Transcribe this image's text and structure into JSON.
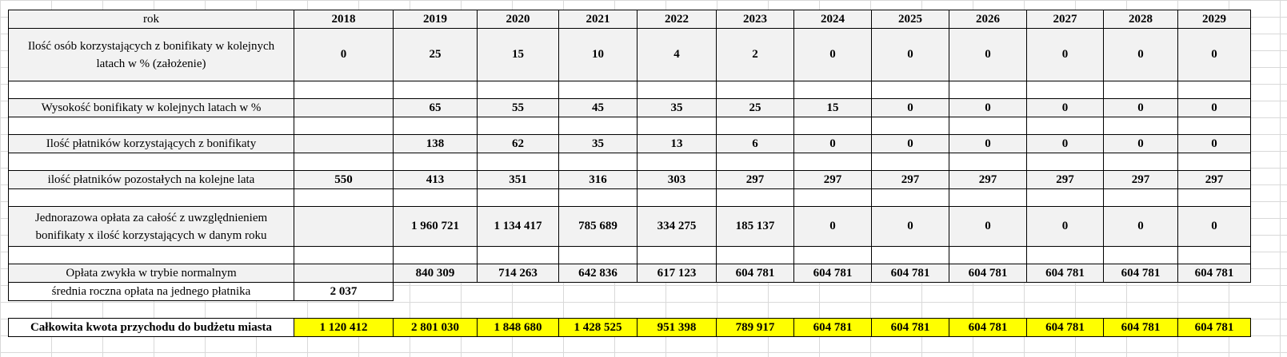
{
  "header": {
    "label": "rok",
    "years": [
      "2018",
      "2019",
      "2020",
      "2021",
      "2022",
      "2023",
      "2024",
      "2025",
      "2026",
      "2027",
      "2028",
      "2029"
    ]
  },
  "rows": [
    {
      "label": "Ilość osób korzystających z bonifikaty w kolejnych latach w % (założenie)",
      "values": [
        "0",
        "25",
        "15",
        "10",
        "4",
        "2",
        "0",
        "0",
        "0",
        "0",
        "0",
        "0"
      ]
    },
    {
      "label": "Wysokość bonifikaty w kolejnych latach w %",
      "values": [
        "",
        "65",
        "55",
        "45",
        "35",
        "25",
        "15",
        "0",
        "0",
        "0",
        "0",
        "0"
      ]
    },
    {
      "label": "Ilość płatników korzystających z bonifikaty",
      "values": [
        "",
        "138",
        "62",
        "35",
        "13",
        "6",
        "0",
        "0",
        "0",
        "0",
        "0",
        "0"
      ]
    },
    {
      "label": "ilość płatników pozostałych na kolejne lata",
      "values": [
        "550",
        "413",
        "351",
        "316",
        "303",
        "297",
        "297",
        "297",
        "297",
        "297",
        "297",
        "297"
      ]
    },
    {
      "label": "Jednorazowa opłata za całość z uwzględnieniem bonifikaty x ilość korzystających w danym roku",
      "values": [
        "",
        "1 960 721",
        "1 134 417",
        "785 689",
        "334 275",
        "185 137",
        "0",
        "0",
        "0",
        "0",
        "0",
        "0"
      ]
    },
    {
      "label": "Opłata zwykła w trybie normalnym",
      "values": [
        "",
        "840 309",
        "714 263",
        "642 836",
        "617 123",
        "604 781",
        "604 781",
        "604 781",
        "604 781",
        "604 781",
        "604 781",
        "604 781"
      ]
    }
  ],
  "average": {
    "label": "średnia roczna opłata na jednego płatnika",
    "value": "2 037"
  },
  "total": {
    "label": "Całkowita kwota przychodu do budżetu miasta",
    "values": [
      "1 120 412",
      "2 801 030",
      "1 848 680",
      "1 428 525",
      "951 398",
      "789 917",
      "604 781",
      "604 781",
      "604 781",
      "604 781",
      "604 781",
      "604 781"
    ]
  }
}
